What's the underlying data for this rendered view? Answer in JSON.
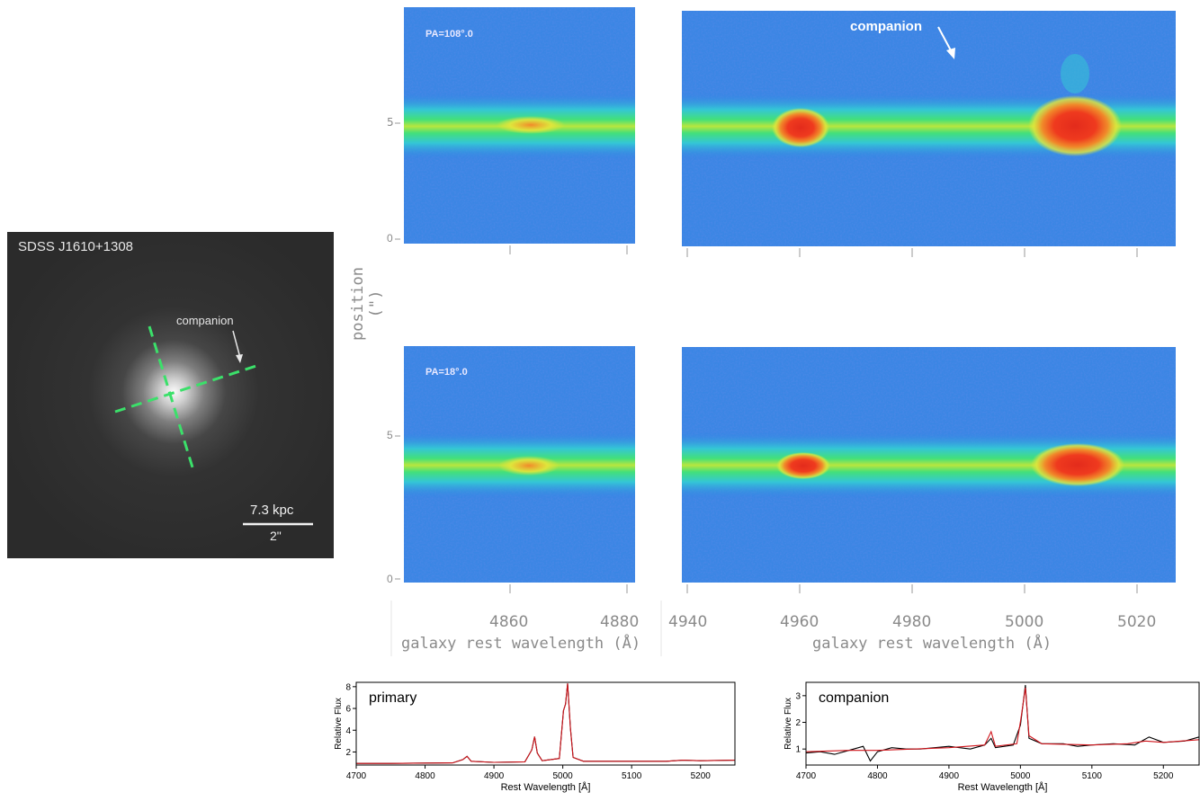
{
  "figure": {
    "image_panel": {
      "object_label": "SDSS J1610+1308",
      "companion_label": "companion",
      "scale_kpc": "7.3 kpc",
      "scale_arcsec": "2\""
    },
    "spectra_2d": {
      "panels": [
        {
          "pa_label": "PA=108°.0",
          "annotation": "companion"
        },
        {
          "pa_label": "PA=18°.0"
        }
      ],
      "position_axis_label": "position (\")",
      "y_ticks": [
        "5",
        "0"
      ],
      "x_ticks_left": [
        "4860",
        "4880"
      ],
      "x_ticks_right": [
        "4940",
        "4960",
        "4980",
        "5000",
        "5020"
      ],
      "xlabel": "galaxy rest wavelength (Å)",
      "colormap": [
        "#1e3ca8",
        "#2f7ee6",
        "#34c6d6",
        "#43e07a",
        "#e6e53a",
        "#f08a2a",
        "#e32b1c"
      ]
    }
  },
  "chart_data": [
    {
      "type": "line",
      "title": "primary",
      "xlabel": "Rest Wavelength [Å]",
      "ylabel": "Relative Flux",
      "xlim": [
        4700,
        5250
      ],
      "ylim": [
        0.8,
        8.4
      ],
      "xticks": [
        4700,
        4800,
        4900,
        5000,
        5100,
        5200
      ],
      "yticks": [
        2,
        4,
        6,
        8
      ],
      "series": [
        {
          "color": "#000000",
          "points": [
            [
              4700,
              0.95
            ],
            [
              4750,
              0.95
            ],
            [
              4800,
              0.98
            ],
            [
              4840,
              1.0
            ],
            [
              4855,
              1.3
            ],
            [
              4861,
              1.6
            ],
            [
              4867,
              1.15
            ],
            [
              4900,
              1.05
            ],
            [
              4945,
              1.1
            ],
            [
              4955,
              2.2
            ],
            [
              4959,
              3.4
            ],
            [
              4963,
              1.9
            ],
            [
              4970,
              1.2
            ],
            [
              4995,
              1.4
            ],
            [
              5001,
              5.8
            ],
            [
              5004,
              6.4
            ],
            [
              5007,
              8.3
            ],
            [
              5011,
              4.2
            ],
            [
              5015,
              1.5
            ],
            [
              5030,
              1.15
            ],
            [
              5100,
              1.15
            ],
            [
              5150,
              1.15
            ],
            [
              5175,
              1.25
            ],
            [
              5200,
              1.2
            ],
            [
              5250,
              1.25
            ]
          ]
        },
        {
          "color": "#d0141b",
          "points": [
            [
              4700,
              0.95
            ],
            [
              4750,
              0.95
            ],
            [
              4800,
              0.98
            ],
            [
              4840,
              1.0
            ],
            [
              4855,
              1.3
            ],
            [
              4861,
              1.6
            ],
            [
              4867,
              1.15
            ],
            [
              4900,
              1.05
            ],
            [
              4945,
              1.1
            ],
            [
              4955,
              2.2
            ],
            [
              4959,
              3.4
            ],
            [
              4963,
              1.9
            ],
            [
              4970,
              1.2
            ],
            [
              4995,
              1.4
            ],
            [
              5001,
              5.8
            ],
            [
              5004,
              6.4
            ],
            [
              5007,
              8.3
            ],
            [
              5011,
              4.2
            ],
            [
              5015,
              1.5
            ],
            [
              5030,
              1.15
            ],
            [
              5100,
              1.15
            ],
            [
              5150,
              1.15
            ],
            [
              5175,
              1.25
            ],
            [
              5200,
              1.2
            ],
            [
              5250,
              1.25
            ]
          ]
        }
      ]
    },
    {
      "type": "line",
      "title": "companion",
      "xlabel": "Rest Wavelength [Å]",
      "ylabel": "Relative Flux",
      "xlim": [
        4700,
        5250
      ],
      "ylim": [
        0.4,
        3.5
      ],
      "xticks": [
        4700,
        4800,
        4900,
        5000,
        5100,
        5200
      ],
      "yticks": [
        1,
        2,
        3
      ],
      "series": [
        {
          "color": "#000000",
          "points": [
            [
              4700,
              0.85
            ],
            [
              4720,
              0.9
            ],
            [
              4740,
              0.8
            ],
            [
              4760,
              0.95
            ],
            [
              4780,
              1.1
            ],
            [
              4790,
              0.55
            ],
            [
              4800,
              0.9
            ],
            [
              4820,
              1.05
            ],
            [
              4840,
              1.0
            ],
            [
              4860,
              1.0
            ],
            [
              4880,
              1.05
            ],
            [
              4900,
              1.1
            ],
            [
              4930,
              1.0
            ],
            [
              4950,
              1.15
            ],
            [
              4959,
              1.4
            ],
            [
              4965,
              1.05
            ],
            [
              4990,
              1.15
            ],
            [
              5000,
              1.9
            ],
            [
              5007,
              3.4
            ],
            [
              5012,
              1.4
            ],
            [
              5030,
              1.2
            ],
            [
              5060,
              1.2
            ],
            [
              5080,
              1.1
            ],
            [
              5100,
              1.15
            ],
            [
              5130,
              1.2
            ],
            [
              5160,
              1.15
            ],
            [
              5180,
              1.45
            ],
            [
              5200,
              1.25
            ],
            [
              5230,
              1.3
            ],
            [
              5250,
              1.45
            ]
          ]
        },
        {
          "color": "#d0141b",
          "points": [
            [
              4700,
              0.9
            ],
            [
              4760,
              0.95
            ],
            [
              4800,
              0.95
            ],
            [
              4850,
              1.0
            ],
            [
              4900,
              1.05
            ],
            [
              4950,
              1.15
            ],
            [
              4959,
              1.65
            ],
            [
              4965,
              1.1
            ],
            [
              4995,
              1.2
            ],
            [
              5001,
              2.2
            ],
            [
              5007,
              3.3
            ],
            [
              5012,
              1.5
            ],
            [
              5030,
              1.2
            ],
            [
              5100,
              1.15
            ],
            [
              5150,
              1.2
            ],
            [
              5175,
              1.3
            ],
            [
              5200,
              1.25
            ],
            [
              5250,
              1.35
            ]
          ]
        }
      ]
    }
  ]
}
